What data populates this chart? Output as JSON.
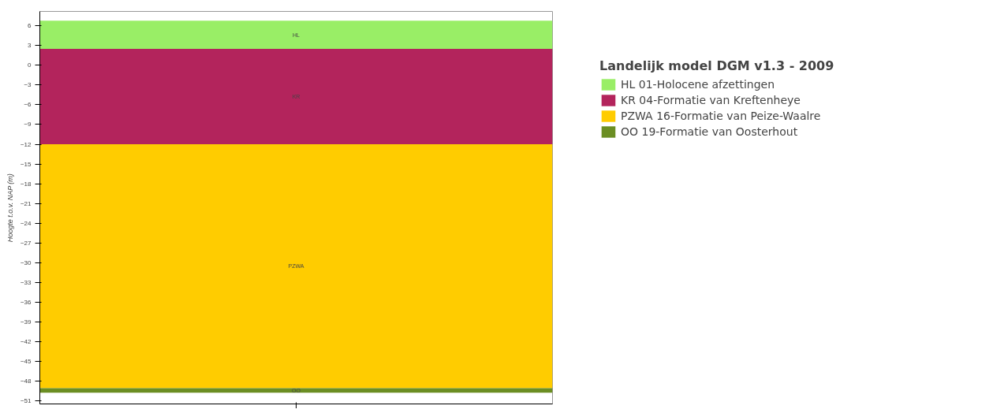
{
  "chart_data": {
    "type": "bar",
    "ylabel": "Hoogte t.o.v. NAP (m)",
    "legend_title": "Landelijk model DGM v1.3 - 2009",
    "categories": [
      null
    ],
    "series": [
      {
        "name": "HL 01-Holocene afzettingen",
        "color": "#99ee66",
        "values": [
          4.3
        ],
        "base": [
          2.5
        ]
      },
      {
        "name": "KR 04-Formatie van Kreftenheye",
        "color": "#b3245c",
        "values": [
          14.5
        ],
        "base": [
          -12
        ]
      },
      {
        "name": "PZWA 16-Formatie van Peize-Waalre",
        "color": "#ffcc00",
        "values": [
          37.1
        ],
        "base": [
          -49.1
        ]
      },
      {
        "name": "OO 19-Formatie van Oosterhout",
        "color": "#6b8e23",
        "values": [
          0.7
        ],
        "base": [
          -49.8
        ]
      }
    ],
    "annotations": [
      "HL",
      "KR",
      "PZWA",
      "OO"
    ],
    "ylim": [
      -51.5,
      8.2
    ],
    "yticks": [
      6,
      3,
      0,
      -3,
      -6,
      -9,
      -12,
      -15,
      -18,
      -21,
      -24,
      -27,
      -30,
      -33,
      -36,
      -39,
      -42,
      -45,
      -48,
      -51
    ],
    "tick_labels": "y",
    "grid": false,
    "legend": "right"
  }
}
